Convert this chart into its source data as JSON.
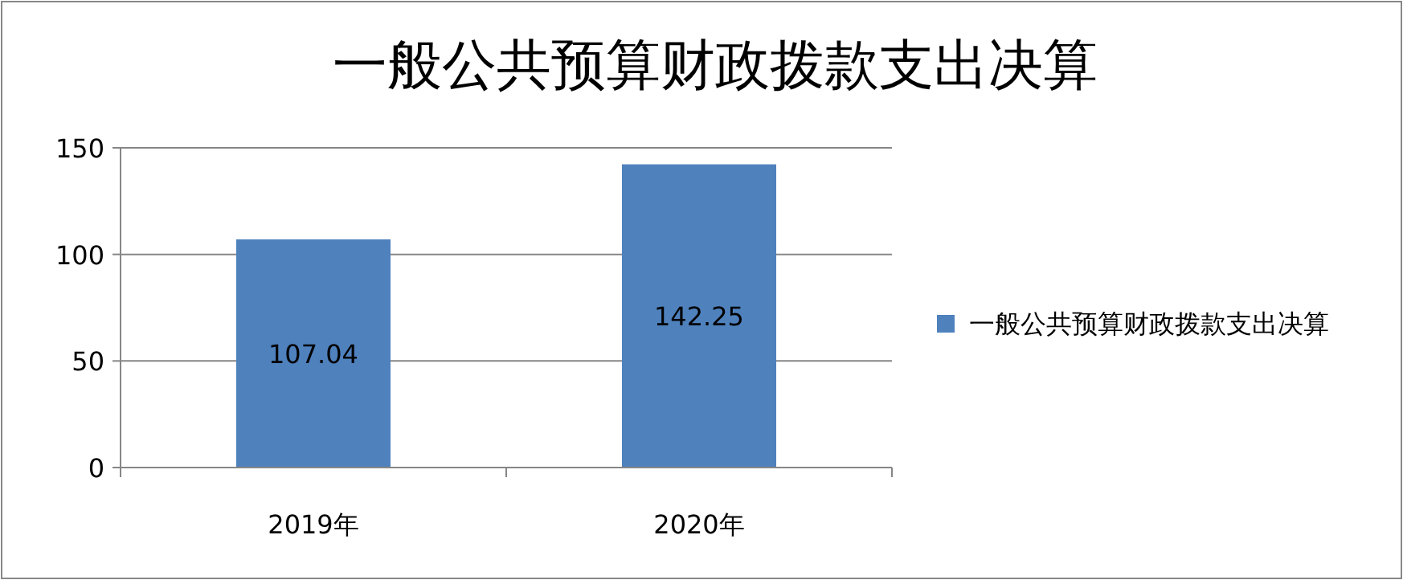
{
  "chart_data": {
    "type": "bar",
    "title": "一般公共预算财政拨款支出决算",
    "categories": [
      "2019年",
      "2020年"
    ],
    "series": [
      {
        "name": "一般公共预算财政拨款支出决算",
        "color": "#4f81bd",
        "values": [
          107.04,
          142.25
        ]
      }
    ],
    "ylim": [
      0,
      150
    ],
    "yticks": [
      0,
      50,
      100,
      150
    ],
    "grid": "y",
    "legend": "right",
    "data_labels": true
  }
}
